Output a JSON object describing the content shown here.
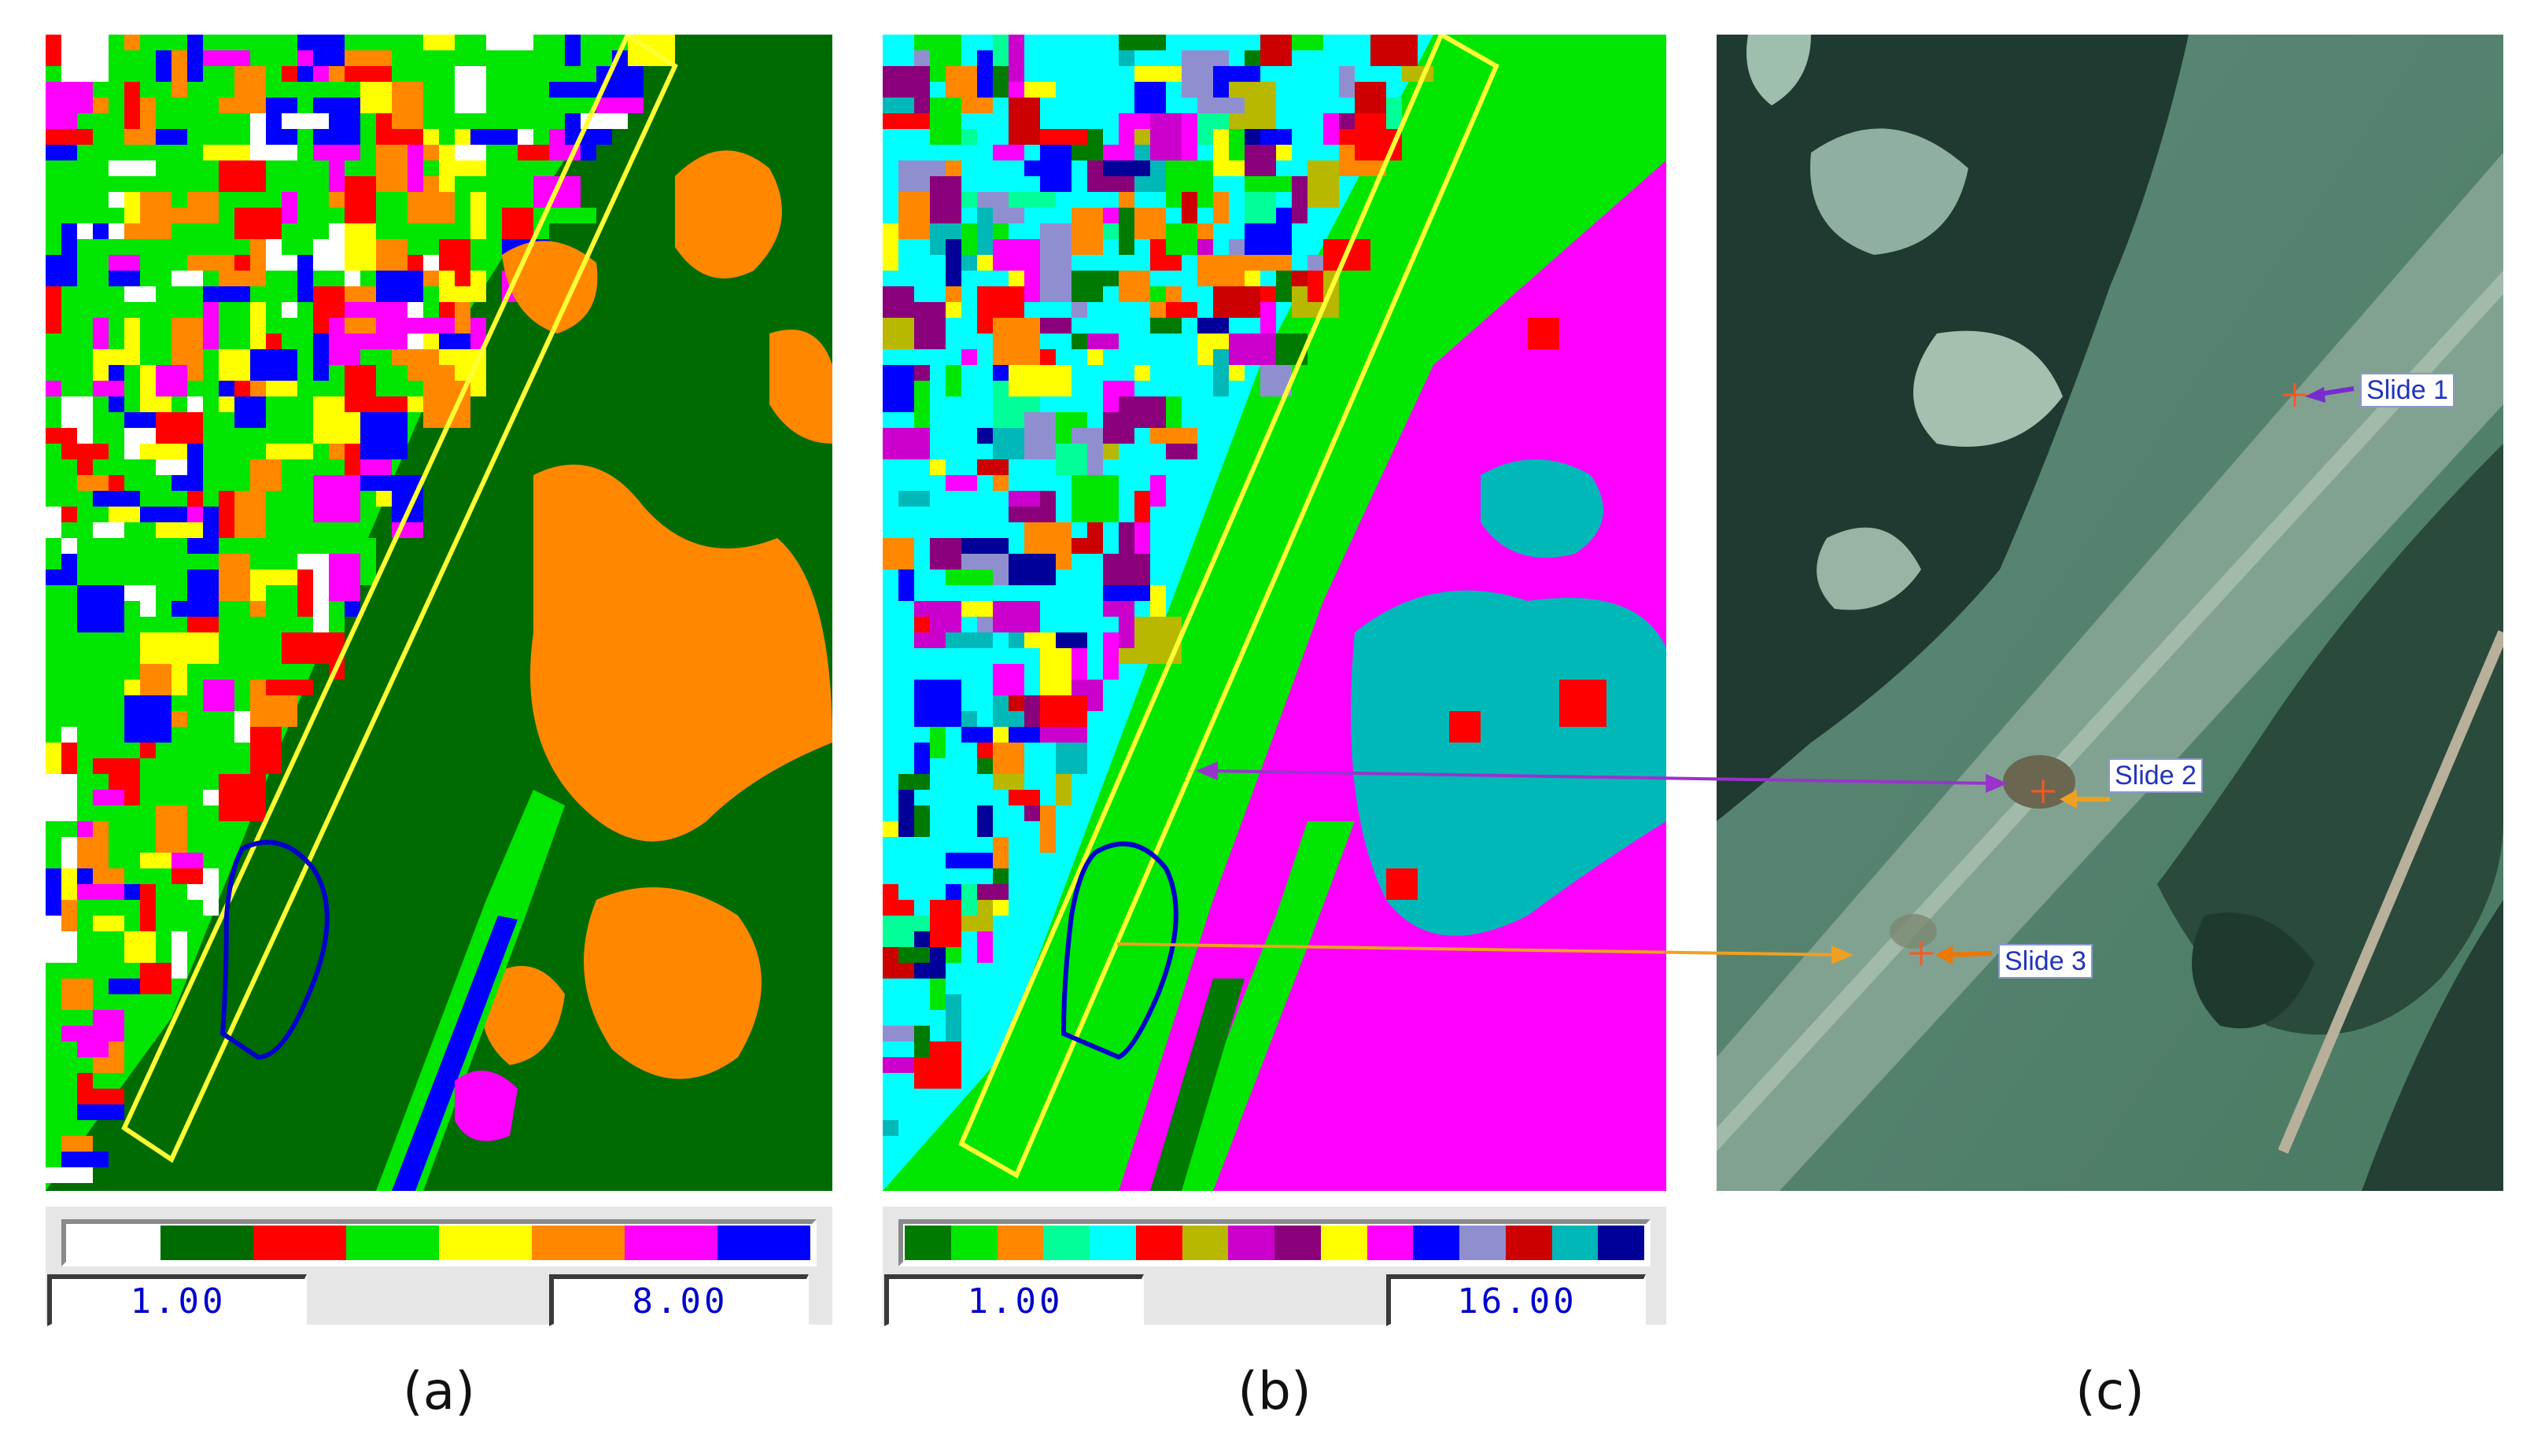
{
  "panels": [
    {
      "caption": "(a)",
      "legend": {
        "min_label": "1.00",
        "max_label": "8.00",
        "colors": [
          "#ffffff",
          "#006b00",
          "#ff0000",
          "#00e600",
          "#ffff00",
          "#ff8800",
          "#ff00ff",
          "#0000ff"
        ]
      }
    },
    {
      "caption": "(b)",
      "legend": {
        "min_label": "1.00",
        "max_label": "16.00",
        "colors": [
          "#007a00",
          "#00e600",
          "#ff8800",
          "#00ff99",
          "#00ffff",
          "#ff0000",
          "#b8b800",
          "#cc00cc",
          "#8a007a",
          "#ffff00",
          "#ff00ff",
          "#0000ff",
          "#8f8fd0",
          "#cc0000",
          "#00b8b8",
          "#000099"
        ]
      }
    },
    {
      "caption": "(c)",
      "slides": [
        {
          "label": "Slide 1",
          "color": "#7a2bd0"
        },
        {
          "label": "Slide 2",
          "color": "#f0a020"
        },
        {
          "label": "Slide 3",
          "color": "#ee7700"
        }
      ]
    }
  ],
  "colors": {
    "study_strip": "#ffff33",
    "slide_outline": "#0000cc",
    "link_purple": "#9933cc",
    "link_orange": "#f0a020"
  }
}
